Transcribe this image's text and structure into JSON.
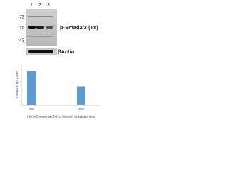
{
  "blot": {
    "lanes": [
      "1",
      "2",
      "3"
    ],
    "markers": [
      "72",
      "55",
      "43"
    ],
    "target_label": "p-Smad2/3 (T8)",
    "control_label": "βActin"
  },
  "chart_data": {
    "type": "bar",
    "y_label": "p-Smad2/3 (T8)/ β-Actin",
    "categories": [
      "0min",
      "5min"
    ],
    "values": [
      1,
      0.55
    ],
    "color": "#5b9bd5",
    "ylim": [
      0,
      1.2
    ],
    "caption": "HEK293T treated with TNF-α（20ng/ml）for indicated times"
  }
}
